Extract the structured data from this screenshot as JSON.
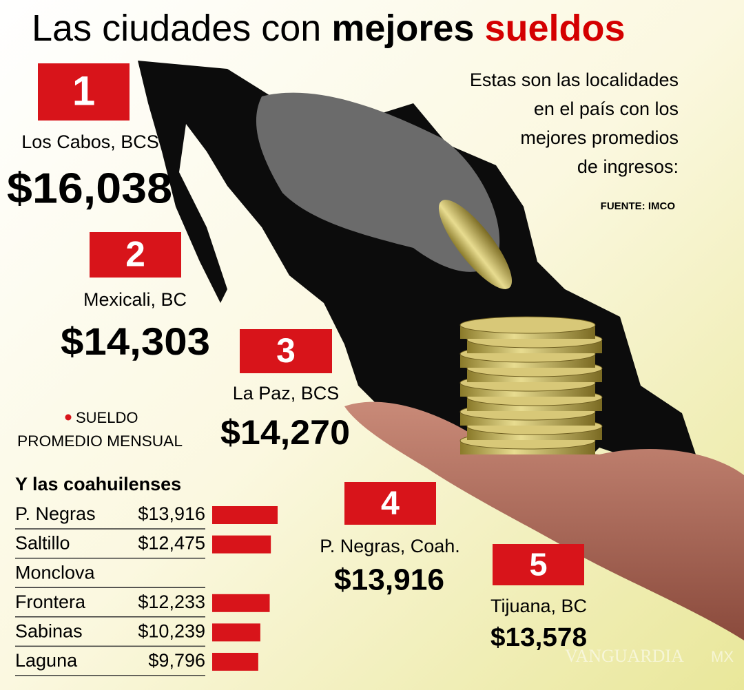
{
  "title": {
    "plain": "Las ciudades con",
    "bold": "mejores",
    "red": "sueldos"
  },
  "intro": [
    "Estas son las localidades",
    "en el país con los",
    "mejores promedios",
    "de ingresos:"
  ],
  "source": "FUENTE: IMCO",
  "ranking": [
    {
      "rank": "1",
      "city": "Los Cabos, BCS",
      "amount": "$16,038"
    },
    {
      "rank": "2",
      "city": "Mexicali, BC",
      "amount": "$14,303"
    },
    {
      "rank": "3",
      "city": "La Paz, BCS",
      "amount": "$14,270"
    },
    {
      "rank": "4",
      "city": "P. Negras, Coah.",
      "amount": "$13,916"
    },
    {
      "rank": "5",
      "city": "Tijuana, BC",
      "amount": "$13,578"
    }
  ],
  "legend": [
    "SUELDO",
    "PROMEDIO MENSUAL"
  ],
  "coahuila": {
    "title": "Y las coahuilenses",
    "names": [
      "P. Negras",
      "Saltillo",
      "Monclova",
      "Frontera",
      "Sabinas",
      "Laguna"
    ],
    "values": [
      13916,
      12475,
      null,
      12233,
      10239,
      9796
    ],
    "value_labels": [
      "$13,916",
      "$12,475",
      null,
      "$12,233",
      "$10,239",
      "$9,796"
    ],
    "color": "#d8141a"
  },
  "watermark": [
    "VANGUARDIA",
    "MX"
  ]
}
